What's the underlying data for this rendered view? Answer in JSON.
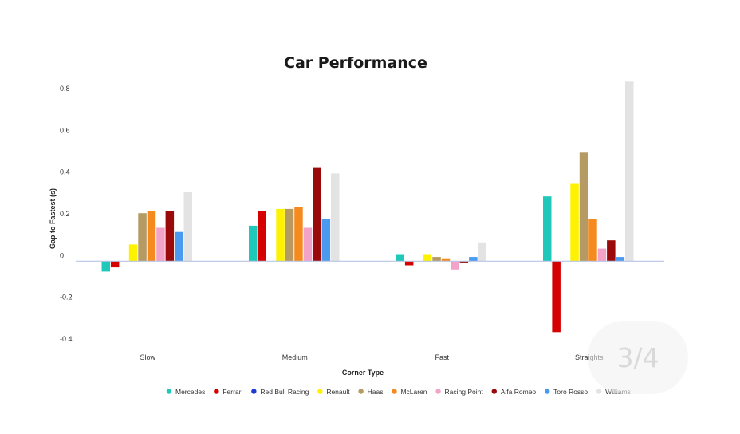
{
  "page_indicator": "3/4",
  "chart_data": {
    "type": "bar",
    "title": "Car Performance",
    "xlabel": "Corner Type",
    "ylabel": "Gap to Fastest (s)",
    "ylim": [
      -0.4,
      0.8
    ],
    "yticks": [
      -0.4,
      -0.2,
      0,
      0.2,
      0.4,
      0.6,
      0.8
    ],
    "categories": [
      "Slow",
      "Medium",
      "Fast",
      "Straights"
    ],
    "legend_position": "bottom",
    "grid": false,
    "series": [
      {
        "name": "Mercedes",
        "color": "#1fc8b8",
        "values": [
          -0.05,
          0.17,
          0.03,
          0.31
        ]
      },
      {
        "name": "Ferrari",
        "color": "#d50000",
        "values": [
          -0.03,
          0.24,
          -0.02,
          -0.34
        ]
      },
      {
        "name": "Red Bull Racing",
        "color": "#1b3bd1",
        "values": [
          0.0,
          0.0,
          0.0,
          0.0
        ]
      },
      {
        "name": "Renault",
        "color": "#fff200",
        "values": [
          0.08,
          0.25,
          0.03,
          0.37
        ]
      },
      {
        "name": "Haas",
        "color": "#b59a63",
        "values": [
          0.23,
          0.25,
          0.02,
          0.52
        ]
      },
      {
        "name": "McLaren",
        "color": "#f58a1f",
        "values": [
          0.24,
          0.26,
          0.01,
          0.2
        ]
      },
      {
        "name": "Racing Point",
        "color": "#f4a3c8",
        "values": [
          0.16,
          0.16,
          -0.04,
          0.06
        ]
      },
      {
        "name": "Alfa Romeo",
        "color": "#9b0a0a",
        "values": [
          0.24,
          0.45,
          -0.01,
          0.1
        ]
      },
      {
        "name": "Toro Rosso",
        "color": "#4a9bf0",
        "values": [
          0.14,
          0.2,
          0.02,
          0.02
        ]
      },
      {
        "name": "Williams",
        "color": "#e3e3e3",
        "values": [
          0.33,
          0.42,
          0.09,
          0.86
        ]
      }
    ]
  }
}
